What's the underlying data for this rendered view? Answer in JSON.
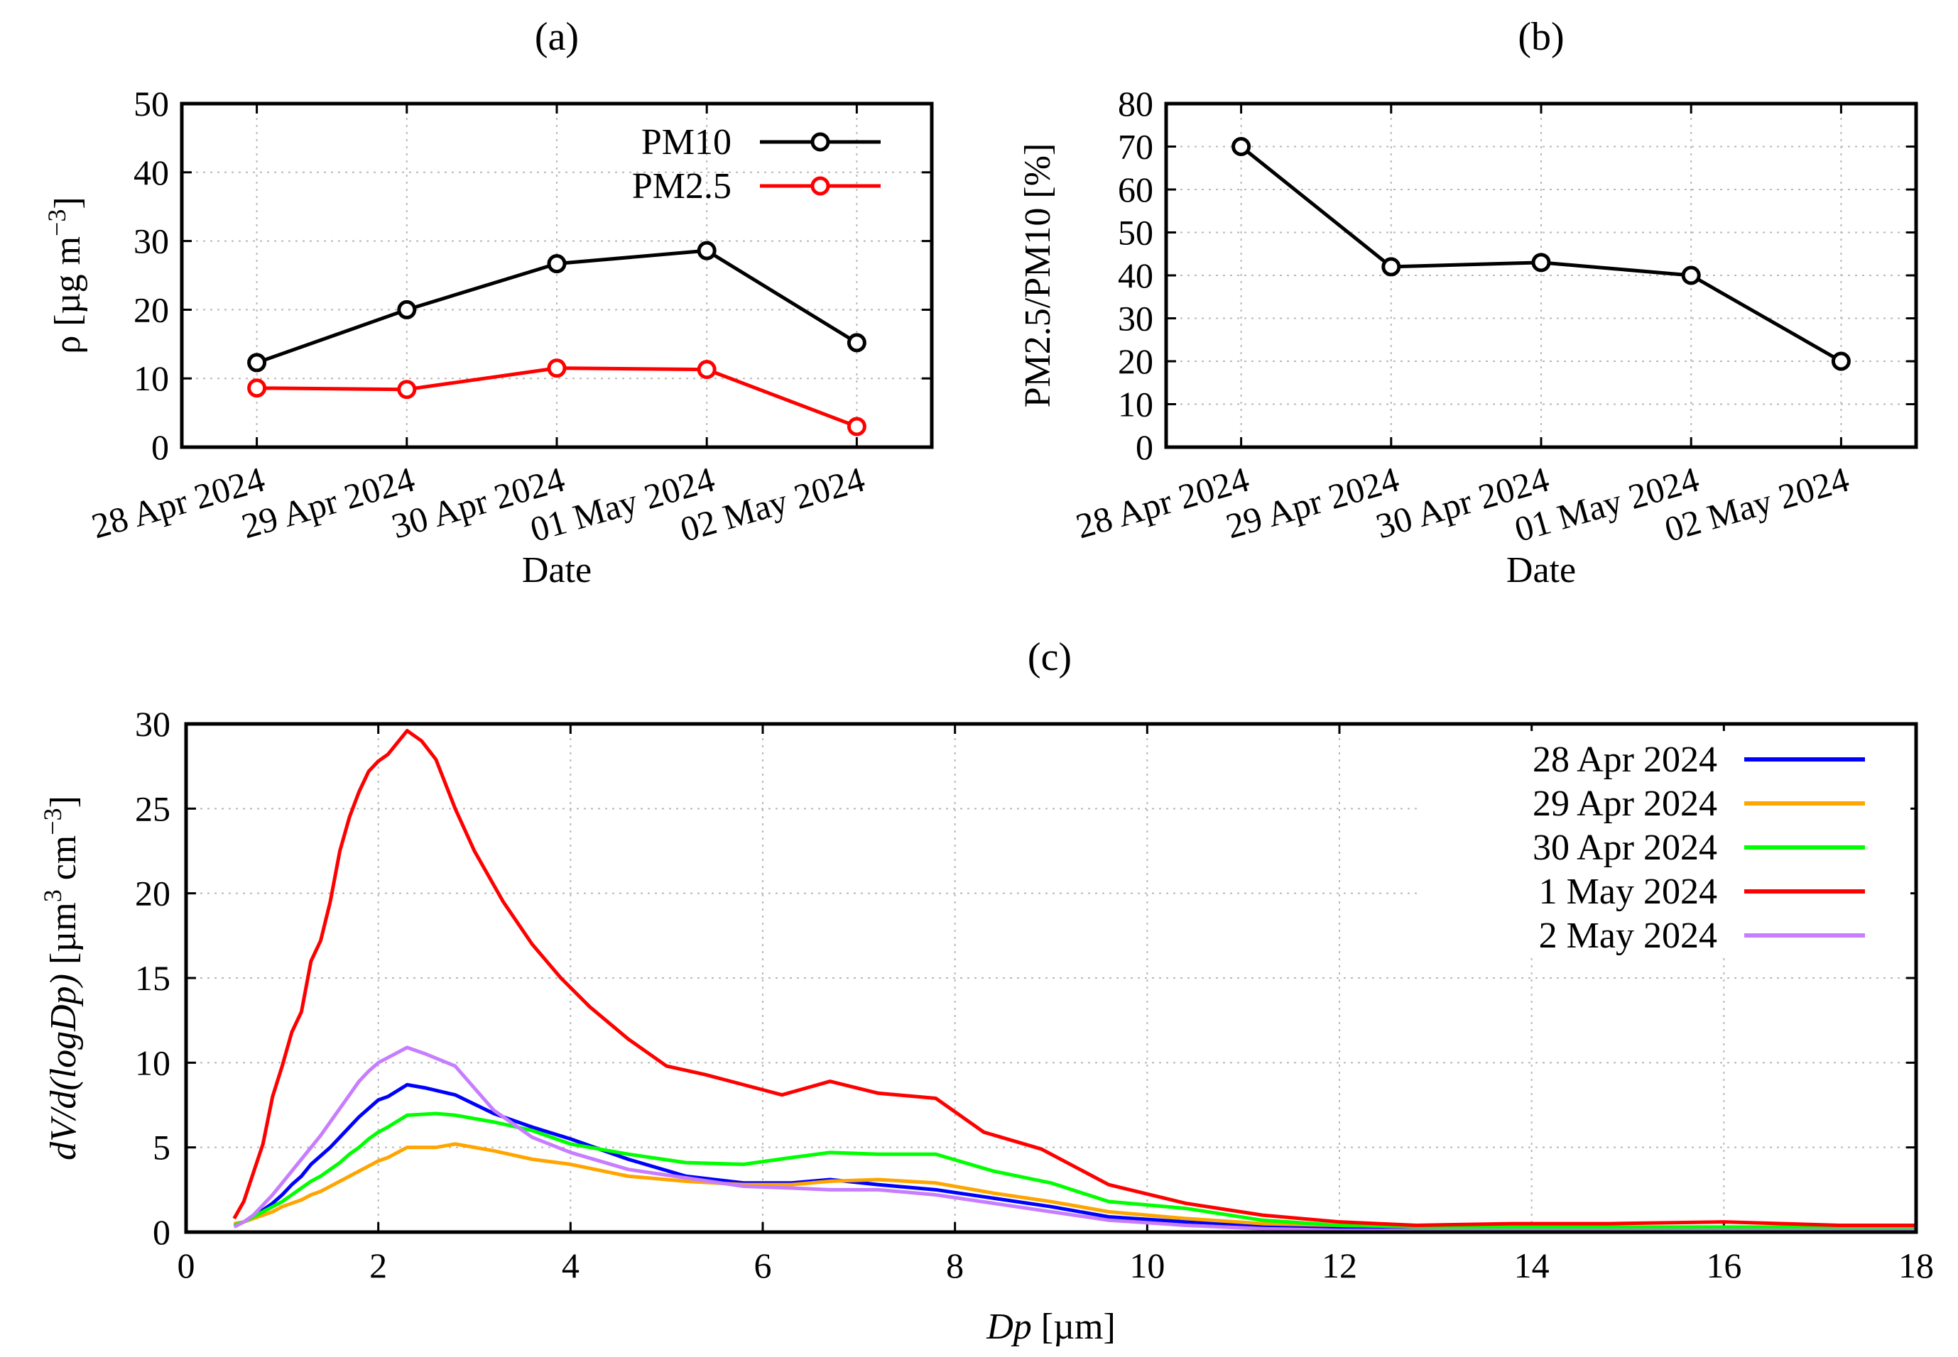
{
  "chart_data": [
    {
      "id": "a",
      "panel_label": "(a)",
      "type": "line",
      "xlabel": "Date",
      "ylabel": "ρ [µg m",
      "ylabel_sup": "−3",
      "ylabel_end": "]",
      "categories": [
        "28 Apr 2024",
        "29 Apr 2024",
        "30 Apr 2024",
        "01 May 2024",
        "02 May 2024"
      ],
      "ylim": [
        0,
        50
      ],
      "yticks": [
        0,
        10,
        20,
        30,
        40,
        50
      ],
      "grid": true,
      "legend_position": "top-right",
      "series": [
        {
          "name": "PM10",
          "color": "#000000",
          "values": [
            12.3,
            20.0,
            26.7,
            28.6,
            15.2
          ]
        },
        {
          "name": "PM2.5",
          "color": "#ff0000",
          "values": [
            8.6,
            8.4,
            11.5,
            11.3,
            3.0
          ]
        }
      ]
    },
    {
      "id": "b",
      "panel_label": "(b)",
      "type": "line",
      "xlabel": "Date",
      "ylabel": "PM2.5/PM10 [%]",
      "categories": [
        "28 Apr 2024",
        "29 Apr 2024",
        "30 Apr 2024",
        "01 May 2024",
        "02 May 2024"
      ],
      "ylim": [
        0,
        80
      ],
      "yticks": [
        0,
        10,
        20,
        30,
        40,
        50,
        60,
        70,
        80
      ],
      "grid": true,
      "series": [
        {
          "color": "#000000",
          "values": [
            70.0,
            42.0,
            43.0,
            40.0,
            20.0
          ]
        }
      ]
    },
    {
      "id": "c",
      "panel_label": "(c)",
      "type": "line",
      "xlabel_italic": "Dp",
      "xlabel_rest": " [µm]",
      "ylabel_italic": "dV/d(logDp)",
      "ylabel_rest": " [µm",
      "ylabel_sup1": "3",
      "ylabel_mid": " cm",
      "ylabel_sup2": "−3",
      "ylabel_end": "]",
      "xlim": [
        0,
        18
      ],
      "ylim": [
        0,
        30
      ],
      "xticks": [
        0,
        2,
        4,
        6,
        8,
        10,
        12,
        14,
        16,
        18
      ],
      "yticks": [
        0,
        5,
        10,
        15,
        20,
        25,
        30
      ],
      "grid": true,
      "legend_position": "top-right",
      "series": [
        {
          "name": "28 Apr 2024",
          "color": "#0000ff",
          "x": [
            0.5,
            0.6,
            0.7,
            0.8,
            0.9,
            1.0,
            1.1,
            1.2,
            1.3,
            1.4,
            1.5,
            1.6,
            1.7,
            1.8,
            1.9,
            2.0,
            2.1,
            2.3,
            2.5,
            2.8,
            3.2,
            3.6,
            4.0,
            4.6,
            5.2,
            5.8,
            6.3,
            6.7,
            7.2,
            7.8,
            8.4,
            9.0,
            9.6,
            10.4,
            11.2,
            12.0,
            13.0,
            14.0,
            15.0,
            16.0,
            17.0,
            18.0
          ],
          "y": [
            0.4,
            0.6,
            0.9,
            1.3,
            1.7,
            2.2,
            2.8,
            3.3,
            4.0,
            4.5,
            5.0,
            5.6,
            6.2,
            6.8,
            7.3,
            7.8,
            8.0,
            8.7,
            8.5,
            8.1,
            7.0,
            6.2,
            5.5,
            4.3,
            3.3,
            2.9,
            2.9,
            3.1,
            2.8,
            2.5,
            2.0,
            1.5,
            0.9,
            0.6,
            0.4,
            0.3,
            0.2,
            0.2,
            0.2,
            0.2,
            0.2,
            0.2
          ]
        },
        {
          "name": "29 Apr 2024",
          "color": "#ffa500",
          "x": [
            0.5,
            0.6,
            0.7,
            0.8,
            0.9,
            1.0,
            1.1,
            1.2,
            1.3,
            1.4,
            1.5,
            1.6,
            1.7,
            1.8,
            1.9,
            2.0,
            2.1,
            2.3,
            2.6,
            2.8,
            3.2,
            3.6,
            4.0,
            4.6,
            5.2,
            5.8,
            6.3,
            6.7,
            7.2,
            7.8,
            8.4,
            9.0,
            9.6,
            10.4,
            11.2,
            12.0,
            13.0,
            14.0,
            15.0,
            16.0,
            17.0,
            18.0
          ],
          "y": [
            0.5,
            0.6,
            0.8,
            1.0,
            1.2,
            1.5,
            1.7,
            1.9,
            2.2,
            2.4,
            2.7,
            3.0,
            3.3,
            3.6,
            3.9,
            4.2,
            4.4,
            5.0,
            5.0,
            5.2,
            4.8,
            4.3,
            4.0,
            3.3,
            3.0,
            2.8,
            2.8,
            3.0,
            3.1,
            2.9,
            2.3,
            1.8,
            1.2,
            0.8,
            0.5,
            0.4,
            0.3,
            0.2,
            0.2,
            0.2,
            0.2,
            0.2
          ]
        },
        {
          "name": "30 Apr 2024",
          "color": "#00ff00",
          "x": [
            0.5,
            0.6,
            0.7,
            0.8,
            0.9,
            1.0,
            1.1,
            1.2,
            1.3,
            1.4,
            1.5,
            1.6,
            1.7,
            1.8,
            1.9,
            2.0,
            2.1,
            2.3,
            2.6,
            2.8,
            3.2,
            3.6,
            4.0,
            4.6,
            5.2,
            5.8,
            6.3,
            6.7,
            7.2,
            7.8,
            8.4,
            9.0,
            9.6,
            10.4,
            11.2,
            12.0,
            13.0,
            14.0,
            15.0,
            16.0,
            17.0,
            18.0
          ],
          "y": [
            0.4,
            0.6,
            0.9,
            1.2,
            1.5,
            1.8,
            2.2,
            2.6,
            3.0,
            3.3,
            3.7,
            4.1,
            4.6,
            5.0,
            5.5,
            5.9,
            6.2,
            6.9,
            7.0,
            6.9,
            6.5,
            6.0,
            5.2,
            4.6,
            4.1,
            4.0,
            4.4,
            4.7,
            4.6,
            4.6,
            3.6,
            2.9,
            1.8,
            1.4,
            0.7,
            0.4,
            0.3,
            0.3,
            0.3,
            0.3,
            0.3,
            0.3
          ]
        },
        {
          "name": "1 May 2024",
          "color": "#ff0000",
          "x": [
            0.5,
            0.6,
            0.7,
            0.8,
            0.9,
            1.0,
            1.1,
            1.2,
            1.3,
            1.4,
            1.5,
            1.6,
            1.7,
            1.8,
            1.9,
            2.0,
            2.1,
            2.3,
            2.45,
            2.6,
            2.8,
            3.0,
            3.3,
            3.6,
            3.9,
            4.2,
            4.6,
            5.0,
            5.4,
            5.8,
            6.2,
            6.7,
            7.2,
            7.8,
            8.3,
            8.9,
            9.6,
            10.4,
            11.2,
            12.0,
            12.8,
            13.8,
            14.8,
            16.0,
            17.2,
            18.0
          ],
          "y": [
            0.8,
            1.8,
            3.5,
            5.2,
            8.0,
            9.8,
            11.8,
            13.0,
            16.0,
            17.2,
            19.5,
            22.5,
            24.5,
            26.0,
            27.2,
            27.8,
            28.2,
            29.6,
            29.0,
            27.9,
            25.0,
            22.5,
            19.5,
            17.0,
            15.0,
            13.3,
            11.4,
            9.8,
            9.3,
            8.7,
            8.1,
            8.9,
            8.2,
            7.9,
            5.9,
            4.9,
            2.8,
            1.7,
            1.0,
            0.6,
            0.4,
            0.5,
            0.5,
            0.6,
            0.4,
            0.4
          ]
        },
        {
          "name": "2 May 2024",
          "color": "#c77dff",
          "x": [
            0.5,
            0.6,
            0.7,
            0.8,
            0.9,
            1.0,
            1.1,
            1.2,
            1.3,
            1.4,
            1.5,
            1.6,
            1.7,
            1.8,
            1.9,
            2.0,
            2.1,
            2.3,
            2.5,
            2.8,
            3.2,
            3.6,
            4.0,
            4.6,
            5.2,
            5.8,
            6.3,
            6.7,
            7.2,
            7.8,
            8.4,
            9.0,
            9.6,
            10.4,
            11.2,
            12.0,
            13.0,
            14.0,
            15.0,
            16.0,
            17.0,
            18.0
          ],
          "y": [
            0.3,
            0.6,
            1.0,
            1.6,
            2.2,
            2.9,
            3.6,
            4.3,
            5.0,
            5.7,
            6.5,
            7.3,
            8.1,
            8.9,
            9.5,
            10.0,
            10.3,
            10.9,
            10.5,
            9.8,
            7.2,
            5.6,
            4.7,
            3.7,
            3.2,
            2.7,
            2.6,
            2.5,
            2.5,
            2.2,
            1.7,
            1.2,
            0.7,
            0.4,
            0.2,
            0.1,
            0.1,
            0.1,
            0.1,
            0.1,
            0.1,
            0.1
          ]
        }
      ]
    }
  ]
}
